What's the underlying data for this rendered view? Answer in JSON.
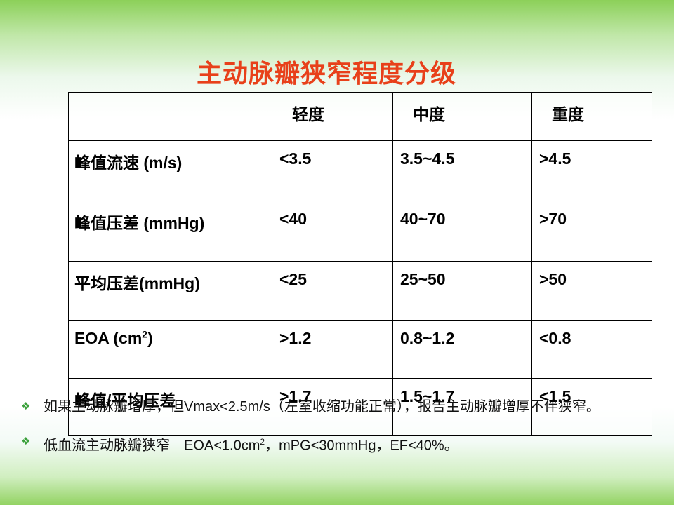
{
  "title": "主动脉瓣狭窄程度分级",
  "table": {
    "header": [
      "轻度",
      "中度",
      "重度"
    ],
    "rows": [
      [
        "峰值流速 (m/s)",
        "<3.5",
        "3.5~4.5",
        ">4.5"
      ],
      [
        "峰值压差 (mmHg)",
        "<40",
        "40~70",
        ">70"
      ],
      [
        "平均压差(mmHg)",
        "<25",
        "25~50",
        ">50"
      ],
      [
        [
          "EOA (cm",
          "2",
          ")"
        ],
        ">1.2",
        "0.8~1.2",
        "<0.8"
      ],
      [
        "峰值/平均压差",
        ">1.7",
        "1.5~1.7",
        "<1.5"
      ]
    ]
  },
  "bullets": [
    "如果主动脉瓣增厚，但Vmax<2.5m/s（左室收缩功能正常），报告主动脉瓣增厚不伴狭窄。",
    [
      "低血流主动脉瓣狭窄　EOA<1.0cm",
      "2",
      "，mPG<30mmHg，EF<40%。"
    ]
  ]
}
